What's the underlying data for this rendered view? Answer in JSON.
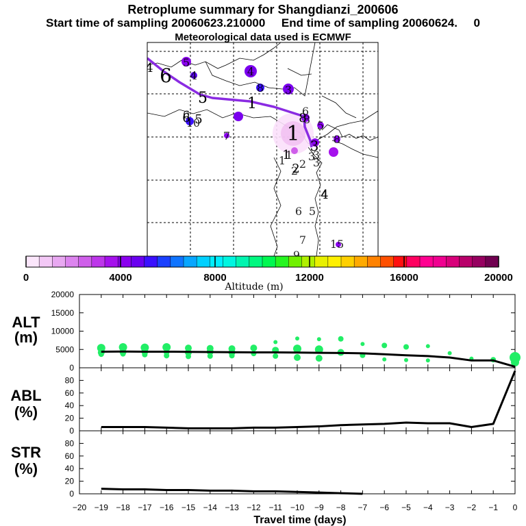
{
  "header": {
    "title": "Retroplume summary for Shangdianzi_200606",
    "sampling": "Start time of sampling 20060623.210000     End time of sampling 20060624.     0",
    "met": "Meteorological data used is ECMWF"
  },
  "colors": {
    "track": "#8a2be2",
    "series_line": "#000000",
    "scatter": "#22ee66",
    "map_line": "#000000"
  },
  "map": {
    "track_labels": [
      "4",
      "6",
      "5",
      "1",
      "8",
      "3",
      "2",
      "1",
      "6",
      "5",
      "4",
      "1"
    ],
    "scatter_labels": [
      "5",
      "4",
      "4",
      "8",
      "3",
      "6",
      "10",
      "7",
      "6",
      "5",
      "8",
      "9",
      "3",
      "1",
      "2",
      "3",
      "1",
      "2",
      "3",
      "4",
      "6",
      "5",
      "7",
      "15",
      "8"
    ]
  },
  "colorbar": {
    "ticks": [
      "0",
      "4000",
      "8000",
      "12000",
      "16000",
      "20000"
    ],
    "label": "Altitude (m)",
    "colors": [
      "#fbe6fb",
      "#f3c8f6",
      "#e8a8f1",
      "#dc84ee",
      "#cf5fea",
      "#bd36ea",
      "#a511ec",
      "#8a00ee",
      "#6a00f0",
      "#3a10ff",
      "#1a40ff",
      "#0f74ff",
      "#08a6ff",
      "#00d0ff",
      "#00eeff",
      "#00f5e0",
      "#00f5b0",
      "#00f880",
      "#00f850",
      "#26f520",
      "#70f000",
      "#b0f000",
      "#e8f000",
      "#fff000",
      "#ffd000",
      "#ffaa00",
      "#ff8200",
      "#ff5000",
      "#ff1010",
      "#ff0060",
      "#ff0090",
      "#f00090",
      "#d8007a",
      "#b8006a",
      "#960060",
      "#700050"
    ]
  },
  "chart_data": [
    {
      "type": "line",
      "name": "ALT",
      "ylabel": "ALT (m)",
      "yticks": [
        "0",
        "5000",
        "10000",
        "15000",
        "20000"
      ],
      "ylim": [
        0,
        20000
      ],
      "xlabel": "Travel time (days)",
      "xlim": [
        -20,
        0
      ],
      "x": [
        -19,
        -18,
        -17,
        -16,
        -15,
        -14,
        -13,
        -12,
        -11,
        -10,
        -9,
        -8,
        -7,
        -6,
        -5,
        -4,
        -3,
        -2,
        -1,
        0
      ],
      "values": [
        4400,
        4450,
        4400,
        4400,
        4350,
        4300,
        4250,
        4200,
        4200,
        4150,
        4100,
        4050,
        3950,
        3700,
        3400,
        3200,
        2800,
        2000,
        2000,
        300
      ],
      "scatter_x": [
        -19,
        -19,
        -19,
        -18,
        -18,
        -18,
        -17,
        -17,
        -17,
        -16,
        -16,
        -16,
        -15,
        -15,
        -15,
        -14,
        -14,
        -14,
        -13,
        -13,
        -13,
        -12,
        -12,
        -11,
        -11,
        -11,
        -10,
        -10,
        -10,
        -9,
        -9,
        -9,
        -8,
        -8,
        -7,
        -7,
        -6,
        -6,
        -5,
        -5,
        -4,
        -4,
        -3,
        -2,
        -1,
        0,
        0
      ],
      "scatter_y": [
        5400,
        4200,
        3700,
        5600,
        4300,
        3800,
        5500,
        4400,
        3600,
        5600,
        4100,
        3300,
        5400,
        4200,
        3100,
        5300,
        4400,
        3200,
        5200,
        4200,
        3300,
        5400,
        3900,
        7000,
        4800,
        3200,
        8000,
        5200,
        2800,
        7800,
        5000,
        2600,
        7900,
        4200,
        6500,
        3400,
        6100,
        2300,
        5700,
        2100,
        5900,
        2000,
        4000,
        2500,
        2200,
        2800,
        1500
      ],
      "scatter_s": [
        6,
        5,
        4,
        6,
        5,
        4,
        6,
        5,
        4,
        6,
        4,
        4,
        5,
        5,
        4,
        5,
        5,
        4,
        5,
        5,
        4,
        5,
        4,
        3,
        5,
        4,
        3,
        6,
        5,
        3,
        6,
        5,
        4,
        5,
        3,
        4,
        4,
        3,
        4,
        3,
        3,
        3,
        3,
        3,
        4,
        8,
        6
      ]
    },
    {
      "type": "line",
      "name": "ABL",
      "ylabel": "ABL (%)",
      "yticks": [
        "0",
        "20",
        "40",
        "60",
        "80"
      ],
      "ylim": [
        0,
        100
      ],
      "xlim": [
        -20,
        0
      ],
      "x": [
        -19,
        -18,
        -17,
        -16,
        -15,
        -14,
        -13,
        -12,
        -11,
        -10,
        -9,
        -8,
        -7,
        -6,
        -5,
        -4,
        -3,
        -2,
        -1,
        0
      ],
      "values": [
        6,
        6,
        6,
        5,
        4,
        4,
        4,
        5,
        5,
        6,
        7,
        9,
        10,
        11,
        13,
        12,
        12,
        6,
        11,
        95
      ]
    },
    {
      "type": "line",
      "name": "STR",
      "ylabel": "STR (%)",
      "yticks": [
        "0",
        "20",
        "40",
        "60",
        "80"
      ],
      "ylim": [
        0,
        100
      ],
      "xlim": [
        -20,
        0
      ],
      "xticks": [
        "−20",
        "−19",
        "−18",
        "−17",
        "−16",
        "−15",
        "−14",
        "−13",
        "−12",
        "−11",
        "−10",
        "−9",
        "−8",
        "−7",
        "−6",
        "−5",
        "−4",
        "−3",
        "−2",
        "−1",
        "0"
      ],
      "x": [
        -19,
        -18,
        -17,
        -16,
        -15,
        -14,
        -13,
        -12,
        -11,
        -10,
        -9,
        -8,
        -7
      ],
      "values": [
        8,
        7,
        7,
        6,
        6,
        5,
        5,
        4,
        4,
        3,
        2,
        1,
        0
      ]
    }
  ],
  "panels": {
    "alt_label": [
      "ALT",
      "(m)"
    ],
    "abl_label": [
      "ABL",
      "(%)"
    ],
    "str_label": [
      "STR",
      "(%)"
    ]
  }
}
